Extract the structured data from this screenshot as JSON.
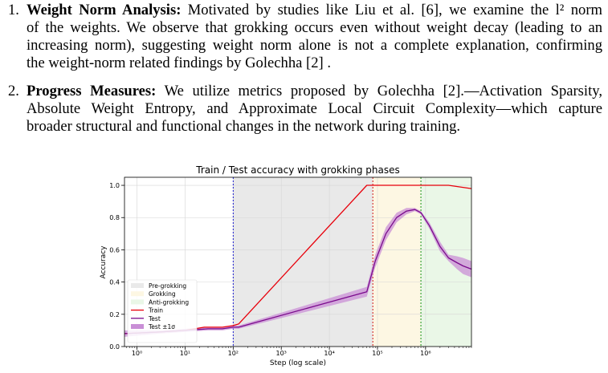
{
  "items": [
    {
      "number": "1.",
      "title": "Weight Norm Analysis:",
      "lines": [
        " Motivated by studies like Liu et al. [6], we examine the l² norm",
        "of the weights. We observe that grokking occurs even without weight decay (leading to an",
        "increasing norm), suggesting weight norm alone is not a complete explanation, confirming",
        "the weight-norm related findings by Golechha [2] ."
      ]
    },
    {
      "number": "2.",
      "title": "Progress Measures:",
      "lines": [
        " We utilize metrics proposed by Golechha [2].—Activation Sparsity,",
        "Absolute Weight Entropy, and Approximate Local Circuit Complexity—which capture",
        "broader structural and functional changes in the network during training."
      ]
    }
  ],
  "chart_data": {
    "type": "line",
    "title": "Train / Test accuracy with grokking phases",
    "xlabel": "Step (log scale)",
    "ylabel": "Accuracy",
    "xscale": "log",
    "xlim": [
      0.55,
      9000000
    ],
    "ylim": [
      0.0,
      1.05
    ],
    "x_ticks": [
      "10⁰",
      "10¹",
      "10²",
      "10³",
      "10⁴",
      "10⁵",
      "10⁶"
    ],
    "y_ticks": [
      "0.0",
      "0.2",
      "0.4",
      "0.6",
      "0.8",
      "1.0"
    ],
    "grid": true,
    "legend_position": "lower-left",
    "legend": [
      "Pre-grokking",
      "Grokking",
      "Anti-grokking",
      "Train",
      "Test",
      "Test ±1σ"
    ],
    "phases": [
      {
        "name": "Pre-grokking",
        "from": 100,
        "to": 80000,
        "color": "#e9e9e9"
      },
      {
        "name": "Grokking",
        "from": 80000,
        "to": 800000,
        "color": "#fdf7e3"
      },
      {
        "name": "Anti-grokking",
        "from": 800000,
        "to": 9000000,
        "color": "#eaf7e7"
      }
    ],
    "vlines": [
      {
        "x": 100,
        "color": "#0000cc"
      },
      {
        "x": 80000,
        "color": "#cc0000"
      },
      {
        "x": 800000,
        "color": "#008800"
      }
    ],
    "series": [
      {
        "name": "Train",
        "color": "#e8000b",
        "x": [
          0.55,
          3,
          10,
          25,
          60,
          100,
          130,
          60000,
          3000000,
          9000000
        ],
        "y": [
          0.08,
          0.09,
          0.1,
          0.12,
          0.12,
          0.13,
          0.14,
          1.0,
          1.0,
          0.98
        ]
      },
      {
        "name": "Test",
        "color": "#7a0a8c",
        "x": [
          0.55,
          3,
          10,
          30,
          60,
          100,
          130,
          60000,
          90000,
          150000,
          250000,
          400000,
          600000,
          800000,
          1200000,
          2000000,
          3000000,
          4500000,
          6000000,
          9000000
        ],
        "y": [
          0.08,
          0.09,
          0.1,
          0.11,
          0.11,
          0.12,
          0.12,
          0.34,
          0.53,
          0.7,
          0.8,
          0.84,
          0.85,
          0.83,
          0.75,
          0.62,
          0.55,
          0.52,
          0.5,
          0.48
        ],
        "std": [
          0.02,
          0.01,
          0.01,
          0.01,
          0.01,
          0.01,
          0.01,
          0.03,
          0.04,
          0.04,
          0.03,
          0.02,
          0.01,
          0.01,
          0.02,
          0.03,
          0.02,
          0.04,
          0.05,
          0.05
        ]
      }
    ]
  }
}
